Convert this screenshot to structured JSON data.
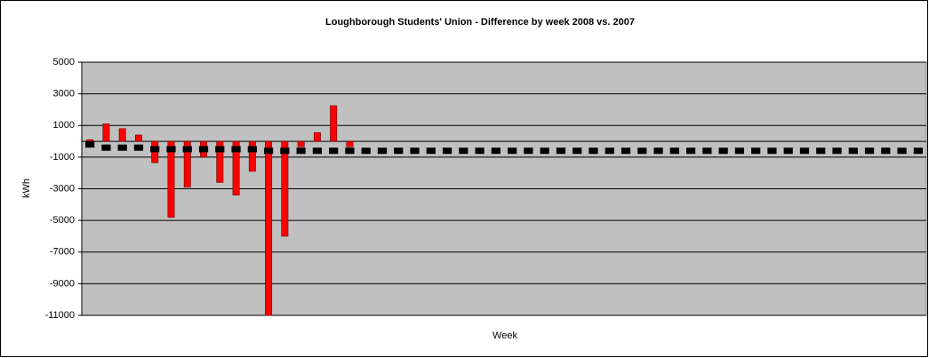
{
  "chart_data": {
    "type": "bar",
    "title": "Loughborough Students' Union - Difference by week 2008 vs. 2007",
    "xlabel": "Week",
    "ylabel": "kWh",
    "series": [
      {
        "type": "bar",
        "color": "#ff0000",
        "values": [
          100,
          1100,
          800,
          400,
          -1350,
          -4800,
          -2900,
          -1000,
          -2600,
          -3400,
          -1900,
          -11000,
          -6000,
          -350,
          550,
          2250,
          -350,
          null,
          null,
          null,
          null,
          null,
          null,
          null,
          null,
          null,
          null,
          null,
          null,
          null,
          null,
          null,
          null,
          null,
          null,
          null,
          null,
          null,
          null,
          null,
          null,
          null,
          null,
          null,
          null,
          null,
          null,
          null,
          null,
          null,
          null,
          null
        ]
      },
      {
        "type": "line",
        "color": "#000000",
        "values": [
          -200,
          -400,
          -400,
          -400,
          -500,
          -500,
          -500,
          -500,
          -500,
          -500,
          -500,
          -600,
          -600,
          -600,
          -600,
          -600,
          -600,
          -600,
          -600,
          -600,
          -600,
          -600,
          -600,
          -600,
          -600,
          -600,
          -600,
          -600,
          -600,
          -600,
          -600,
          -600,
          -600,
          -600,
          -600,
          -600,
          -600,
          -600,
          -600,
          -600,
          -600,
          -600,
          -600,
          -600,
          -600,
          -600,
          -600,
          -600,
          -600,
          -600,
          -600,
          -600
        ]
      }
    ],
    "ylim": [
      -11000,
      5000
    ],
    "yticks": [
      5000,
      3000,
      1000,
      -1000,
      -3000,
      -5000,
      -7000,
      -9000,
      -11000
    ],
    "grid": true,
    "plot_background": "#c0c0c0"
  }
}
